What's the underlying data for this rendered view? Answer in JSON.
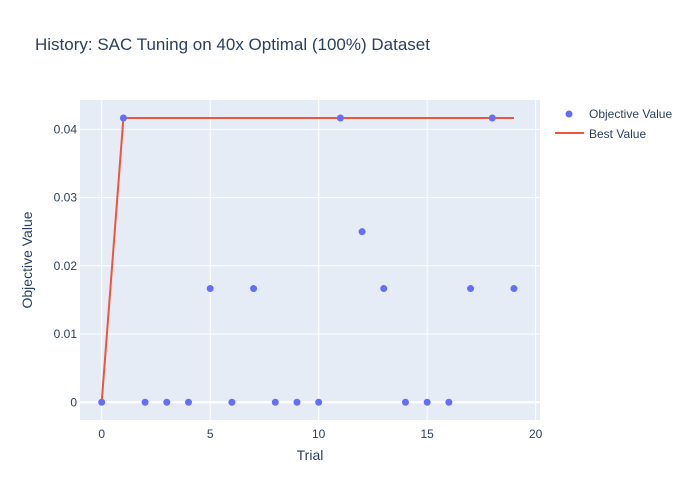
{
  "chart_data": {
    "type": "scatter",
    "title": "History: SAC Tuning on 40x Optimal (100%) Dataset",
    "xlabel": "Trial",
    "ylabel": "Objective Value",
    "xlim": [
      -1,
      20.2
    ],
    "ylim": [
      -0.0026,
      0.0443
    ],
    "x_ticks": [
      0,
      5,
      10,
      15,
      20
    ],
    "x_tick_labels": [
      "0",
      "5",
      "10",
      "15",
      "20"
    ],
    "y_ticks": [
      0,
      0.01,
      0.02,
      0.03,
      0.04
    ],
    "y_tick_labels": [
      "0",
      "0.01",
      "0.02",
      "0.03",
      "0.04"
    ],
    "grid": true,
    "legend_position": "top-right",
    "series": [
      {
        "name": "Objective Value",
        "mode": "markers",
        "color": "#636efa",
        "x": [
          0,
          1,
          2,
          3,
          4,
          5,
          6,
          7,
          8,
          9,
          10,
          11,
          12,
          13,
          14,
          15,
          16,
          17,
          18,
          19
        ],
        "y": [
          0,
          0.041667,
          0,
          0,
          0,
          0.016667,
          0,
          0.016667,
          0,
          0,
          0,
          0.041667,
          0.025,
          0.016667,
          0,
          0,
          0,
          0.016667,
          0.041667,
          0.016667
        ]
      },
      {
        "name": "Best Value",
        "mode": "line",
        "color": "#ef553b",
        "x": [
          0,
          1,
          2,
          3,
          4,
          5,
          6,
          7,
          8,
          9,
          10,
          11,
          12,
          13,
          14,
          15,
          16,
          17,
          18,
          19
        ],
        "y": [
          0,
          0.041667,
          0.041667,
          0.041667,
          0.041667,
          0.041667,
          0.041667,
          0.041667,
          0.041667,
          0.041667,
          0.041667,
          0.041667,
          0.041667,
          0.041667,
          0.041667,
          0.041667,
          0.041667,
          0.041667,
          0.041667,
          0.041667
        ]
      }
    ]
  }
}
